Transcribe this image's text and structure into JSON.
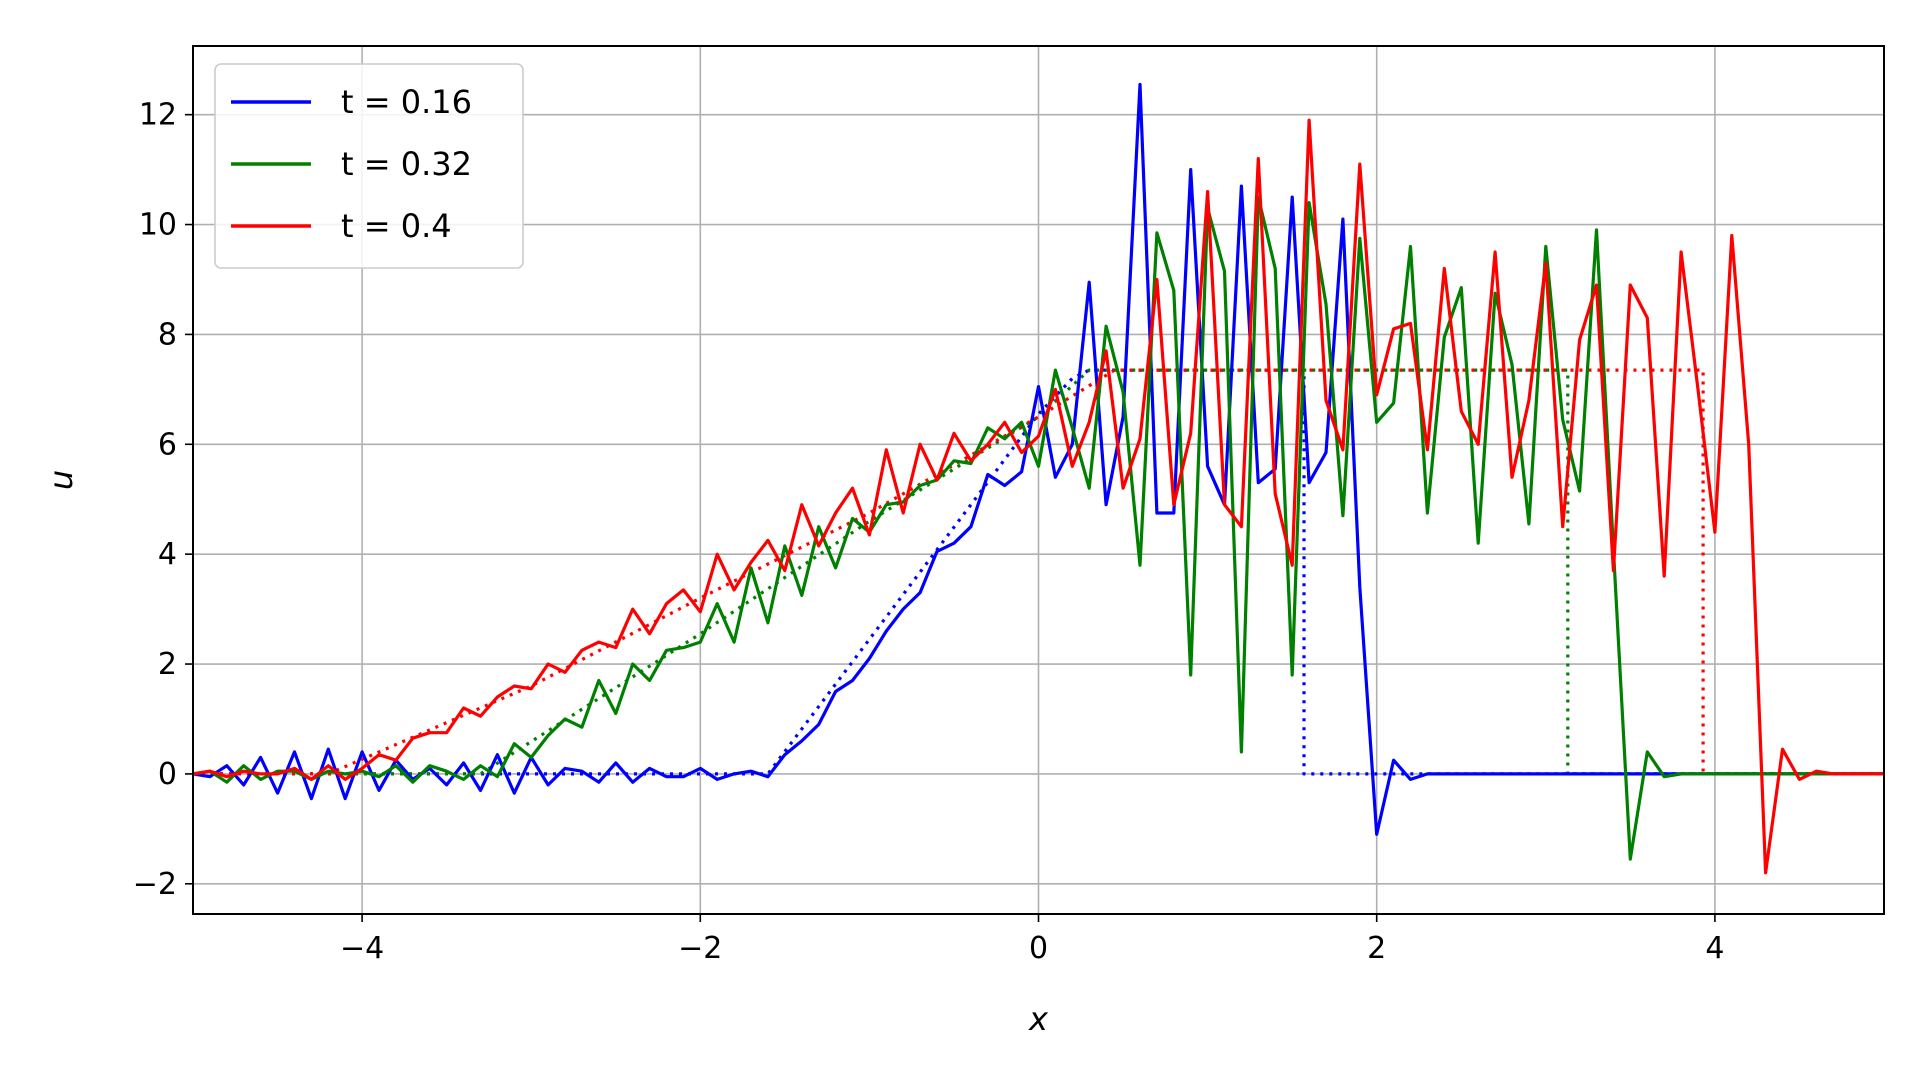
{
  "chart_data": {
    "type": "line",
    "xlabel": "x",
    "ylabel": "u",
    "xlim": [
      -5,
      5
    ],
    "ylim": [
      -2.55,
      13.25
    ],
    "xticks": [
      -4,
      -2,
      0,
      2,
      4
    ],
    "yticks": [
      -2,
      0,
      2,
      4,
      6,
      8,
      10,
      12
    ],
    "xtick_labels": [
      "−4",
      "−2",
      "0",
      "2",
      "4"
    ],
    "ytick_labels": [
      "−2",
      "0",
      "2",
      "4",
      "6",
      "8",
      "10",
      "12"
    ],
    "grid": true,
    "legend_position": "upper-left",
    "colors": {
      "blue": "#0000ff",
      "green": "#008000",
      "red": "#ff0000",
      "grid": "#b0b0b0",
      "frame": "#000000"
    },
    "series": [
      {
        "name": "t = 0.16",
        "legend_label": "t = 0.16",
        "color": "#0000ff",
        "style": "solid",
        "x": [
          -5.0,
          -4.9,
          -4.8,
          -4.7,
          -4.6,
          -4.5,
          -4.4,
          -4.3,
          -4.2,
          -4.1,
          -4.0,
          -3.9,
          -3.8,
          -3.7,
          -3.6,
          -3.5,
          -3.4,
          -3.3,
          -3.2,
          -3.1,
          -3.0,
          -2.9,
          -2.8,
          -2.7,
          -2.6,
          -2.5,
          -2.4,
          -2.3,
          -2.2,
          -2.1,
          -2.0,
          -1.9,
          -1.8,
          -1.7,
          -1.6,
          -1.5,
          -1.4,
          -1.3,
          -1.2,
          -1.1,
          -1.0,
          -0.9,
          -0.8,
          -0.7,
          -0.6,
          -0.5,
          -0.4,
          -0.3,
          -0.2,
          -0.1,
          0.0,
          0.1,
          0.2,
          0.3,
          0.4,
          0.5,
          0.6,
          0.7,
          0.8,
          0.9,
          1.0,
          1.1,
          1.2,
          1.3,
          1.4,
          1.5,
          1.6,
          1.7,
          1.8,
          1.9,
          2.0,
          2.1,
          2.2,
          2.3,
          2.4,
          2.5,
          2.6,
          2.7,
          2.8,
          2.9,
          3.0,
          3.1,
          3.2,
          3.3,
          3.4,
          3.5,
          3.6,
          3.7,
          3.8,
          3.9,
          4.0,
          4.1,
          4.2,
          4.3,
          4.4,
          4.5,
          4.6,
          4.7,
          4.8,
          4.9,
          5.0
        ],
        "y": [
          0.0,
          -0.05,
          0.15,
          -0.2,
          0.3,
          -0.35,
          0.4,
          -0.45,
          0.45,
          -0.45,
          0.4,
          -0.3,
          0.25,
          -0.1,
          0.1,
          -0.2,
          0.2,
          -0.3,
          0.35,
          -0.35,
          0.3,
          -0.2,
          0.1,
          0.05,
          -0.15,
          0.2,
          -0.15,
          0.1,
          -0.05,
          -0.05,
          0.1,
          -0.1,
          0.0,
          0.05,
          -0.05,
          0.35,
          0.6,
          0.9,
          1.5,
          1.7,
          2.1,
          2.6,
          3.0,
          3.3,
          4.05,
          4.2,
          4.5,
          5.45,
          5.25,
          5.5,
          7.05,
          5.4,
          6.0,
          8.95,
          4.9,
          6.5,
          12.55,
          4.75,
          4.75,
          11.0,
          5.6,
          4.9,
          10.7,
          5.3,
          5.55,
          10.5,
          5.3,
          5.85,
          10.1,
          3.4,
          -1.1,
          0.25,
          -0.1,
          0.0,
          0.0,
          0.0,
          0.0,
          0.0,
          0.0,
          0.0,
          0.0,
          0.0,
          0.0,
          0.0,
          0.0,
          0.0,
          0.0,
          0.0,
          0.0,
          0.0,
          0.0,
          0.0,
          0.0,
          0.0,
          0.0,
          0.0,
          0.0,
          0.0,
          0.0,
          0.0,
          0.0
        ]
      },
      {
        "name": "t = 0.32",
        "legend_label": "t = 0.32",
        "color": "#008000",
        "style": "solid",
        "x": [
          -5.0,
          -4.9,
          -4.8,
          -4.7,
          -4.6,
          -4.5,
          -4.4,
          -4.3,
          -4.2,
          -4.1,
          -4.0,
          -3.9,
          -3.8,
          -3.7,
          -3.6,
          -3.5,
          -3.4,
          -3.3,
          -3.2,
          -3.1,
          -3.0,
          -2.9,
          -2.8,
          -2.7,
          -2.6,
          -2.5,
          -2.4,
          -2.3,
          -2.2,
          -2.1,
          -2.0,
          -1.9,
          -1.8,
          -1.7,
          -1.6,
          -1.5,
          -1.4,
          -1.3,
          -1.2,
          -1.1,
          -1.0,
          -0.9,
          -0.8,
          -0.7,
          -0.6,
          -0.5,
          -0.4,
          -0.3,
          -0.2,
          -0.1,
          0.0,
          0.1,
          0.2,
          0.3,
          0.4,
          0.5,
          0.6,
          0.7,
          0.8,
          0.9,
          1.0,
          1.1,
          1.2,
          1.3,
          1.4,
          1.5,
          1.6,
          1.7,
          1.8,
          1.9,
          2.0,
          2.1,
          2.2,
          2.3,
          2.4,
          2.5,
          2.6,
          2.7,
          2.8,
          2.9,
          3.0,
          3.1,
          3.2,
          3.3,
          3.4,
          3.5,
          3.6,
          3.7,
          3.8,
          3.9,
          4.0,
          4.1,
          4.2,
          4.3,
          4.4,
          4.5,
          4.6,
          4.7,
          4.8,
          4.9,
          5.0
        ],
        "y": [
          0.0,
          0.05,
          -0.15,
          0.15,
          -0.1,
          0.05,
          0.05,
          -0.1,
          0.05,
          0.0,
          0.05,
          -0.05,
          0.15,
          -0.15,
          0.15,
          0.05,
          -0.1,
          0.15,
          -0.05,
          0.55,
          0.3,
          0.7,
          1.0,
          0.85,
          1.7,
          1.1,
          2.0,
          1.7,
          2.25,
          2.3,
          2.4,
          3.1,
          2.4,
          3.75,
          2.75,
          4.15,
          3.25,
          4.5,
          3.75,
          4.65,
          4.4,
          4.9,
          4.95,
          5.25,
          5.35,
          5.7,
          5.65,
          6.3,
          6.1,
          6.4,
          5.6,
          7.35,
          6.3,
          5.2,
          8.15,
          6.95,
          3.8,
          9.85,
          8.8,
          1.8,
          10.3,
          9.15,
          0.4,
          10.5,
          9.2,
          1.8,
          10.4,
          8.55,
          4.7,
          9.75,
          6.4,
          6.75,
          9.6,
          4.75,
          7.95,
          8.85,
          4.2,
          8.75,
          7.45,
          4.55,
          9.6,
          6.45,
          5.15,
          9.9,
          4.1,
          -1.55,
          0.4,
          -0.05,
          0.0,
          0.0,
          0.0,
          0.0,
          0.0,
          0.0,
          0.0,
          0.0,
          0.0,
          0.0,
          0.0,
          0.0,
          0.0
        ]
      },
      {
        "name": "t = 0.4",
        "legend_label": "t = 0.4",
        "color": "#ff0000",
        "style": "solid",
        "x": [
          -5.0,
          -4.9,
          -4.8,
          -4.7,
          -4.6,
          -4.5,
          -4.4,
          -4.3,
          -4.2,
          -4.1,
          -4.0,
          -3.9,
          -3.8,
          -3.7,
          -3.6,
          -3.5,
          -3.4,
          -3.3,
          -3.2,
          -3.1,
          -3.0,
          -2.9,
          -2.8,
          -2.7,
          -2.6,
          -2.5,
          -2.4,
          -2.3,
          -2.2,
          -2.1,
          -2.0,
          -1.9,
          -1.8,
          -1.7,
          -1.6,
          -1.5,
          -1.4,
          -1.3,
          -1.2,
          -1.1,
          -1.0,
          -0.9,
          -0.8,
          -0.7,
          -0.6,
          -0.5,
          -0.4,
          -0.3,
          -0.2,
          -0.1,
          0.0,
          0.1,
          0.2,
          0.3,
          0.4,
          0.5,
          0.6,
          0.7,
          0.8,
          0.9,
          1.0,
          1.1,
          1.2,
          1.3,
          1.4,
          1.5,
          1.6,
          1.7,
          1.8,
          1.9,
          2.0,
          2.1,
          2.2,
          2.3,
          2.4,
          2.5,
          2.6,
          2.7,
          2.8,
          2.9,
          3.0,
          3.1,
          3.2,
          3.3,
          3.4,
          3.5,
          3.6,
          3.7,
          3.8,
          3.9,
          4.0,
          4.1,
          4.2,
          4.3,
          4.4,
          4.5,
          4.6,
          4.7,
          4.8,
          4.9,
          5.0
        ],
        "y": [
          0.0,
          0.05,
          -0.05,
          0.05,
          0.0,
          0.0,
          0.1,
          -0.1,
          0.15,
          -0.1,
          0.1,
          0.35,
          0.25,
          0.65,
          0.75,
          0.75,
          1.2,
          1.05,
          1.4,
          1.6,
          1.55,
          2.0,
          1.85,
          2.25,
          2.4,
          2.3,
          3.0,
          2.55,
          3.1,
          3.35,
          2.95,
          4.0,
          3.35,
          3.85,
          4.25,
          3.7,
          4.9,
          4.15,
          4.75,
          5.2,
          4.35,
          5.9,
          4.75,
          6.0,
          5.35,
          6.2,
          5.7,
          6.0,
          6.4,
          5.85,
          6.15,
          7.0,
          5.6,
          6.4,
          7.7,
          5.2,
          6.1,
          9.0,
          4.9,
          6.2,
          10.6,
          4.9,
          4.5,
          11.2,
          5.1,
          3.8,
          11.9,
          6.8,
          5.9,
          11.1,
          6.9,
          8.1,
          8.2,
          5.9,
          9.2,
          6.6,
          6.0,
          9.5,
          5.4,
          6.8,
          9.3,
          4.5,
          7.9,
          8.9,
          3.7,
          8.9,
          8.3,
          3.6,
          9.5,
          7.0,
          4.4,
          9.8,
          6.0,
          -1.8,
          0.45,
          -0.1,
          0.05,
          0.0,
          0.0,
          0.0,
          0.0
        ]
      },
      {
        "name": "",
        "color": "#0000ff",
        "style": "dotted",
        "x": [
          -5.0,
          -1.6,
          -0.4,
          0.0,
          0.2,
          0.3,
          1.57,
          1.57,
          5.0
        ],
        "y": [
          0.0,
          0.0,
          4.9,
          6.55,
          7.2,
          7.35,
          7.35,
          0.0,
          0.0
        ]
      },
      {
        "name": "",
        "color": "#008000",
        "style": "dotted",
        "x": [
          -5.0,
          -3.3,
          -2.0,
          -1.0,
          0.0,
          0.3,
          3.13,
          3.13,
          5.0
        ],
        "y": [
          0.0,
          0.0,
          2.55,
          4.6,
          6.5,
          7.35,
          7.35,
          0.0,
          0.0
        ]
      },
      {
        "name": "",
        "color": "#ff0000",
        "style": "dotted",
        "x": [
          -5.0,
          -4.2,
          -3.0,
          -2.0,
          -1.0,
          0.0,
          0.45,
          3.93,
          3.93,
          5.0
        ],
        "y": [
          0.0,
          0.0,
          1.6,
          3.2,
          4.75,
          6.5,
          7.35,
          7.35,
          0.0,
          0.0
        ]
      }
    ]
  }
}
